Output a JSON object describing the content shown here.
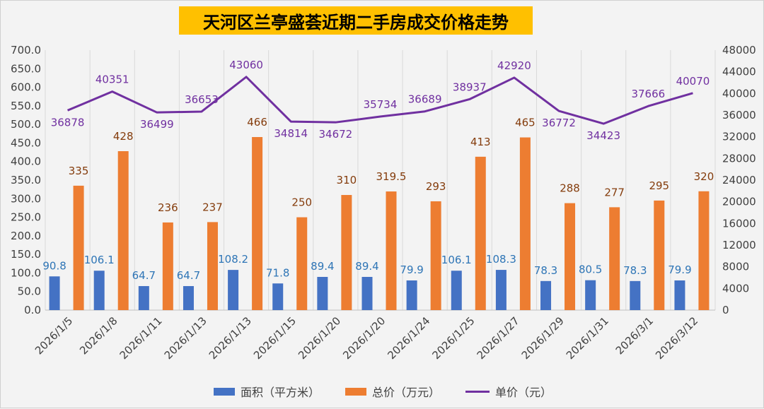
{
  "chart_data": {
    "type": "bar",
    "title": "天河区兰亭盛荟近期二手房成交价格走势",
    "categories": [
      "2026/1/5",
      "2026/1/8",
      "2026/1/11",
      "2026/1/13",
      "2026/1/13",
      "2026/1/15",
      "2026/1/20",
      "2026/1/20",
      "2026/1/24",
      "2026/1/25",
      "2026/1/27",
      "2026/1/29",
      "2026/1/31",
      "2026/3/1",
      "2026/3/12"
    ],
    "series": [
      {
        "name": "面积（平方米）",
        "kind": "bar",
        "axis": "left",
        "color": "#4472c4",
        "values": [
          90.8,
          106.1,
          64.7,
          64.7,
          108.2,
          71.8,
          89.4,
          89.4,
          79.9,
          106.1,
          108.3,
          78.3,
          80.5,
          78.3,
          79.9
        ],
        "labels": [
          "90.8",
          "106.1",
          "64.7",
          "64.7",
          "108.2",
          "71.8",
          "89.4",
          "89.4",
          "79.9",
          "106.1",
          "108.3",
          "78.3",
          "80.5",
          "78.3",
          "79.9"
        ],
        "label_color": "#2e75b6"
      },
      {
        "name": "总价（万元）",
        "kind": "bar",
        "axis": "left",
        "color": "#ed7d31",
        "values": [
          335,
          428,
          236,
          237,
          466,
          250,
          310,
          319.5,
          293,
          413,
          465,
          288,
          277,
          295,
          320
        ],
        "labels": [
          "335",
          "428",
          "236",
          "237",
          "466",
          "250",
          "310",
          "319.5",
          "293",
          "413",
          "465",
          "288",
          "277",
          "295",
          "320"
        ],
        "label_color": "#843c0c"
      },
      {
        "name": "单价（元）",
        "kind": "line",
        "axis": "right",
        "color": "#7030a0",
        "values": [
          36878,
          40351,
          36499,
          36653,
          43060,
          34814,
          34672,
          35734,
          36689,
          38937,
          42920,
          36772,
          34423,
          37666,
          40070
        ],
        "labels": [
          "36878",
          "40351",
          "36499",
          "36653",
          "43060",
          "34814",
          "34672",
          "35734",
          "36689",
          "38937",
          "42920",
          "36772",
          "34423",
          "37666",
          "40070"
        ],
        "label_color": "#7030a0"
      }
    ],
    "y_left": {
      "min": 0,
      "max": 700,
      "step": 50,
      "ticks": [
        "0.0",
        "50.0",
        "100.0",
        "150.0",
        "200.0",
        "250.0",
        "300.0",
        "350.0",
        "400.0",
        "450.0",
        "500.0",
        "550.0",
        "600.0",
        "650.0",
        "700.0"
      ]
    },
    "y_right": {
      "min": 0,
      "max": 48000,
      "step": 4000,
      "ticks": [
        "0",
        "4000",
        "8000",
        "12000",
        "16000",
        "20000",
        "24000",
        "28000",
        "32000",
        "36000",
        "40000",
        "44000",
        "48000"
      ]
    },
    "grid": "vertical",
    "legend": "bottom-center"
  }
}
